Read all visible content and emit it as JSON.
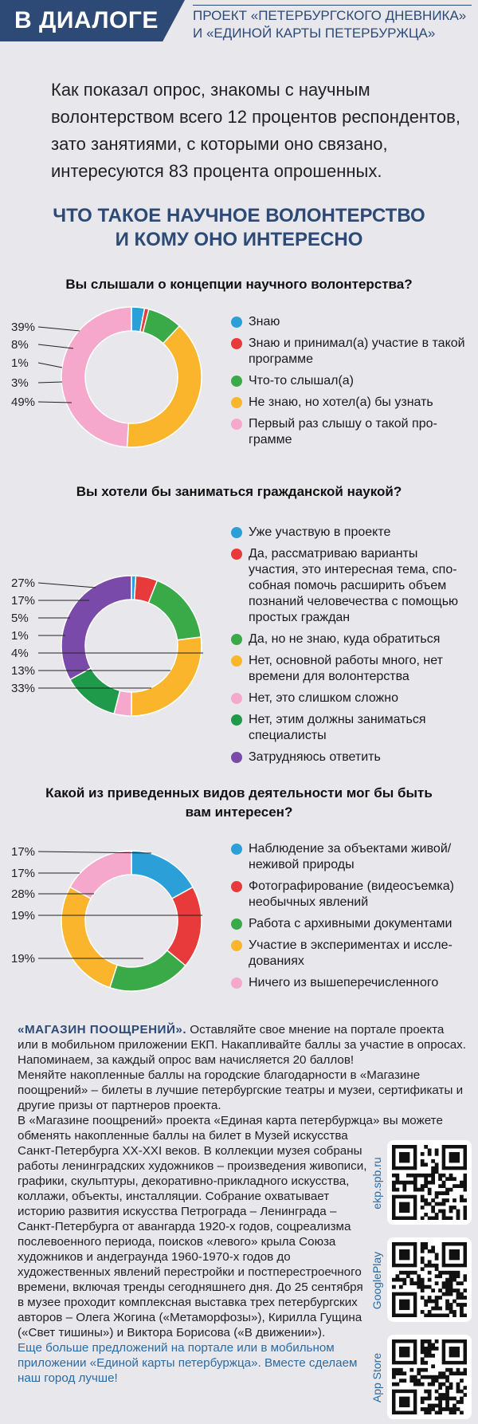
{
  "header": {
    "tag": "В ДИАЛОГЕ",
    "project_line1": "ПРОЕКТ «ПЕТЕРБУРГСКОГО ДНЕВНИКА»",
    "project_line2": "И «ЕДИНОЙ КАРТЫ ПЕТЕРБУРЖЦА»"
  },
  "lead": "Как показал опрос, знакомы с научным волонтерством всего 12 процентов респондентов, зато занятиями, с которыми оно связано, интересуются 83 процента опрошенных.",
  "headline_line1": "ЧТО ТАКОЕ НАУЧНОЕ ВОЛОНТЕРСТВО",
  "headline_line2": "И КОМУ ОНО ИНТЕРЕСНО",
  "chart_data": [
    {
      "type": "pie",
      "title": "Вы слышали о концепции научного волонтерства?",
      "labels": [
        "Знаю",
        "Знаю и принимал(а) участие в такой программе",
        "Что-то слышал(а)",
        "Не знаю, но хотел(а) бы узнать",
        "Первый раз слышу о такой программе"
      ],
      "legend_text": [
        "Знаю",
        "Знаю и принимал(а) участие в такой программе",
        "Что-то слышал(а)",
        "Не знаю, но хотел(а) бы узнать",
        "Первый раз слышу о такой про-грамме"
      ],
      "values": [
        3,
        1,
        8,
        39,
        49
      ],
      "colors": [
        "#2a9fd8",
        "#e83a3a",
        "#3aaa48",
        "#fbb52d",
        "#f6a8cc"
      ],
      "pct_labels": [
        "39%",
        "8%",
        "1%",
        "3%",
        "49%"
      ],
      "legend_placement": "right"
    },
    {
      "type": "pie",
      "title": "Вы хотели бы заниматься гражданской наукой?",
      "labels": [
        "Уже участвую в проекте",
        "Да, рассматриваю варианты участия, это интересная тема, способная помочь расширить объем познаний человечества с помощью простых граждан",
        "Да, но не знаю, куда обратиться",
        "Нет, основной работы много, нет времени для волонтерства",
        "Нет, это слишком сложно",
        "Нет, этим должны заниматься специалисты",
        "Затрудняюсь ответить"
      ],
      "legend_text": [
        "Уже участвую в проекте",
        "Да, рассматриваю варианты участия, это интересная тема, спо-собная помочь расширить объем познаний человечества с помощью простых граждан",
        "Да, но не знаю, куда обратиться",
        "Нет, основной работы много, нет времени для волонтерства",
        "Нет, это слишком сложно",
        "Нет, этим должны заниматься специалисты",
        "Затрудняюсь ответить"
      ],
      "values": [
        1,
        5,
        17,
        27,
        4,
        13,
        33
      ],
      "colors": [
        "#2a9fd8",
        "#e83a3a",
        "#3aaa48",
        "#fbb52d",
        "#f6a8cc",
        "#1e9a4a",
        "#7a4aaa"
      ],
      "pct_labels": [
        "27%",
        "17%",
        "5%",
        "1%",
        "4%",
        "13%",
        "33%"
      ],
      "legend_placement": "right"
    },
    {
      "type": "pie",
      "title": "Какой из приведенных видов деятельности мог бы быть вам интересен?",
      "labels": [
        "Наблюдение за объектами живой/неживой природы",
        "Фотографирование (видеосъемка) необычных явлений",
        "Работа с архивными документами",
        "Участие в экспериментах и исследованиях",
        "Ничего из вышеперечисленного"
      ],
      "legend_text": [
        "Наблюдение за объектами живой/ неживой природы",
        "Фотографирование (видеосъемка) необычных явлений",
        "Работа с архивными документами",
        "Участие в экспериментах и иссле-дованиях",
        "Ничего из вышеперечисленного"
      ],
      "values": [
        17,
        19,
        19,
        28,
        17
      ],
      "colors": [
        "#2a9fd8",
        "#e83a3a",
        "#3aaa48",
        "#fbb52d",
        "#f6a8cc"
      ],
      "pct_labels": [
        "17%",
        "17%",
        "28%",
        "19%",
        "19%"
      ],
      "legend_placement": "right"
    }
  ],
  "shop": {
    "heading": "«МАГАЗИН ПООЩРЕНИЙ».",
    "p1": "Оставляйте свое мнение на портале проекта или в мобильном приложении ЕКП. Накапливайте баллы за участие в опросах. Напоминаем, за каждый опрос вам начисляется 20 баллов!",
    "p2": "Меняйте накопленные баллы на городские благодарности в «Магазине поощрений» – билеты в лучшие петербургские театры и музеи, сертификаты и другие призы от партнеров проекта.",
    "p3a": "В «Магазине поощрений» проекта «Единая карта петербуржца» вы можете",
    "p3b": "обменять накопленные баллы на билет в Музей искусства Санкт-Петербурга XX-XXI веков. В коллекции музея собраны работы ленинградских художников – произведения живописи, графики, скульптуры, декоративно-прикладного искусства, коллажи, объекты, инсталляции. Собрание охватывает историю развития искусства Петрограда – Ленинграда – Санкт-Петербурга от авангарда 1920-х годов, соцреализма послевоенного периода, поисков «левого» крыла Союза художников и андеграунда 1960-1970-х годов до художественных явлений перестройки и постперестроечного времени, включая тренды сегодняшнего дня. До 25 сентября в музее проходит комплексная выставка трех петербургских авторов – Олега Жогина («Метаморфозы»), Кирилла Гущина («Свет тишины») и Виктора Борисова («В движении»).",
    "cta": "Еще больше предложений на портале или в мобильном приложении «Единой карты петербуржца». Вместе сделаем наш город лучше!"
  },
  "qr": {
    "labels": [
      "ekp.spb.ru",
      "GooglePlay",
      "App Store"
    ]
  }
}
